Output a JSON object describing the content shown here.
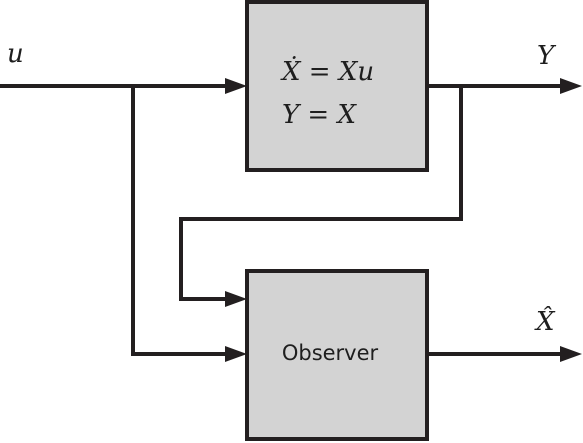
{
  "diagram": {
    "signals": {
      "input": "u",
      "output": "Y",
      "estimate": "X̂"
    },
    "system": {
      "equations": [
        "Ẋ = Xu",
        "Y = X"
      ]
    },
    "observer": {
      "label": "Observer"
    },
    "colors": {
      "block_fill": "#d3d3d3",
      "stroke": "#231f20"
    }
  }
}
